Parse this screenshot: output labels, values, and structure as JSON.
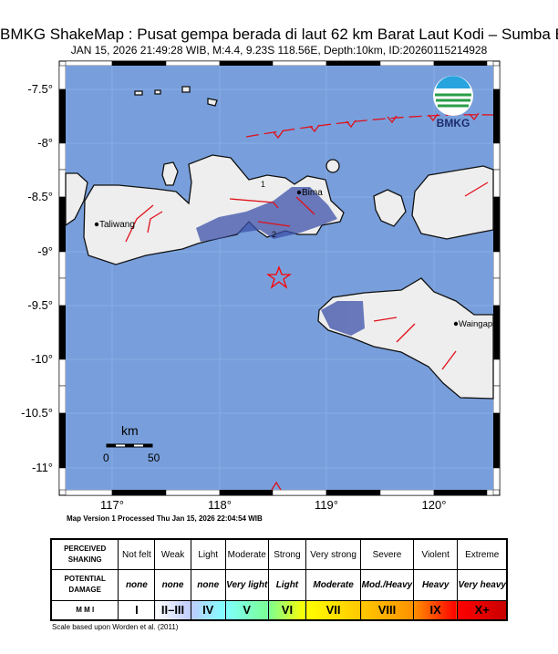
{
  "title": "BMKG ShakeMap : Pusat gempa berada di laut 62 km Barat Laut Kodi – Sumba Barat Daya",
  "subtitle": "JAN 15, 2026 21:49:28 WIB, M:4.4, 9.23S 118.56E, Depth:10km, ID:20260115214928",
  "map": {
    "epicenter": {
      "lat": -9.23,
      "lon": 118.56,
      "icon": "star-icon",
      "color": "#ff0000"
    },
    "lat_ticks": [
      "-7.5°",
      "-8°",
      "-8.5°",
      "-9°",
      "-9.5°",
      "-10°",
      "-10.5°",
      "-11°"
    ],
    "lon_ticks": [
      "117°",
      "118°",
      "119°",
      "120°"
    ],
    "cities": [
      {
        "name": "Taliwang",
        "lat": -8.74,
        "lon": 116.87
      },
      {
        "name": "Bima",
        "lat": -8.46,
        "lon": 118.73
      },
      {
        "name": "Waingapu",
        "label": "Waingap",
        "lat": -9.65,
        "lon": 120.26
      }
    ],
    "contour_labels": [
      "1",
      "2"
    ],
    "scale_bar": {
      "unit": "km",
      "labels": [
        "0",
        "50"
      ]
    },
    "logo": "BMKG",
    "colors": {
      "sea": "#789fdc",
      "land": "#f2f2f2",
      "fault": "#e0101a",
      "shaking": "#3c50a8"
    }
  },
  "map_version": "Map Version 1 Processed Thu Jan 15, 2026 22:04:54 WIB",
  "legend": {
    "row_headers": [
      "PERCEIVED SHAKING",
      "POTENTIAL DAMAGE",
      "M M I"
    ],
    "shaking": [
      "Not felt",
      "Weak",
      "Light",
      "Moderate",
      "Strong",
      "Very strong",
      "Severe",
      "Violent",
      "Extreme"
    ],
    "damage": [
      "none",
      "none",
      "none",
      "Very light",
      "Light",
      "Moderate",
      "Mod./Heavy",
      "Heavy",
      "Very heavy"
    ],
    "mmi": [
      "I",
      "II–III",
      "IV",
      "V",
      "VI",
      "VII",
      "VIII",
      "IX",
      "X+"
    ],
    "mmi_colors": [
      "#ffffff",
      "#bfccff",
      "#80ffff",
      "#7aff93",
      "#ffff00",
      "#ffc800",
      "#ff9100",
      "#ff0000",
      "#c80000"
    ]
  },
  "scale_note": "Scale based upon Worden et al. (2011)"
}
